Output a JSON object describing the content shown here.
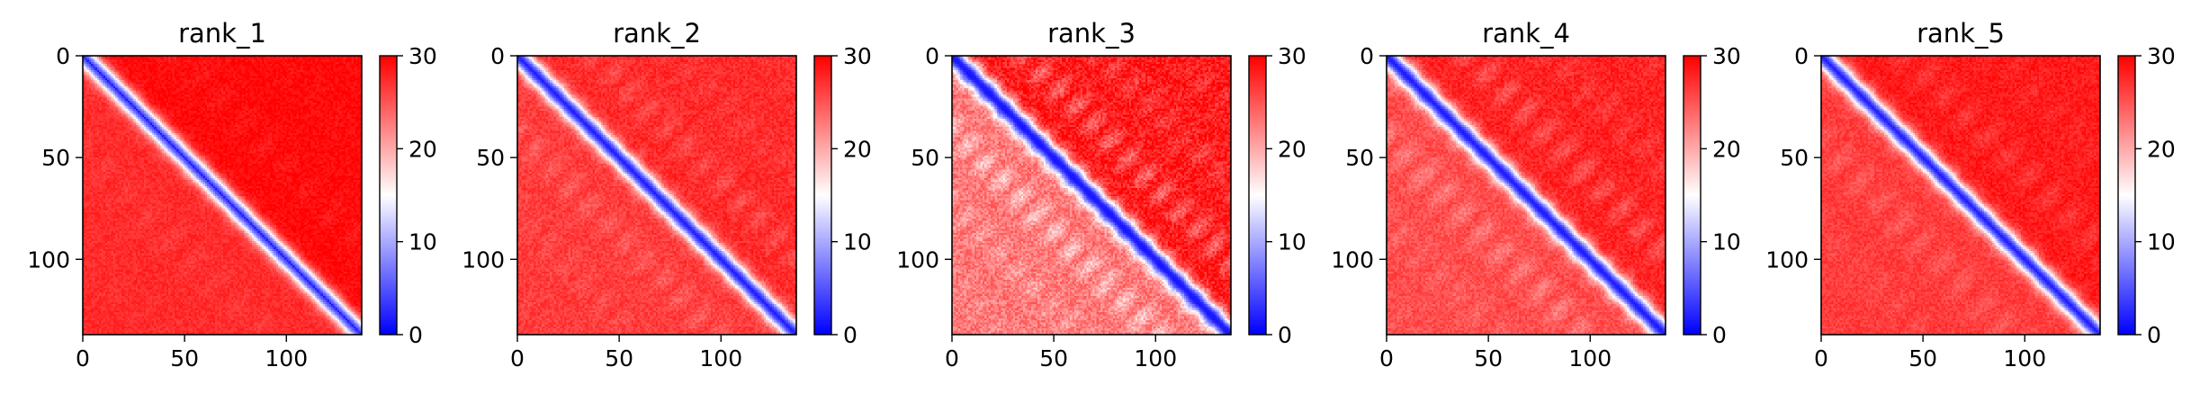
{
  "chart_data": [
    {
      "type": "heatmap",
      "title": "rank_1",
      "x_ticks": [
        0,
        50,
        100
      ],
      "y_ticks": [
        0,
        50,
        100
      ],
      "xlim": [
        0,
        137
      ],
      "ylim": [
        137,
        0
      ],
      "colorbar": {
        "ticks": [
          0,
          10,
          20,
          30
        ],
        "range": [
          0,
          30
        ],
        "colormap": "bwr"
      },
      "n": 137,
      "pattern": {
        "diag_width": 4.5,
        "diag_depth": 0.85,
        "base": 27.5,
        "upper_base": 29.5,
        "blob_amp": 2,
        "blob_period": 22,
        "noise": 1.2
      }
    },
    {
      "type": "heatmap",
      "title": "rank_2",
      "x_ticks": [
        0,
        50,
        100
      ],
      "y_ticks": [
        0,
        50,
        100
      ],
      "xlim": [
        0,
        137
      ],
      "ylim": [
        137,
        0
      ],
      "colorbar": {
        "ticks": [
          0,
          10,
          20,
          30
        ],
        "range": [
          0,
          30
        ],
        "colormap": "bwr"
      },
      "n": 137,
      "pattern": {
        "diag_width": 4.5,
        "diag_depth": 0.9,
        "base": 26.5,
        "upper_base": 27.5,
        "blob_amp": 4,
        "blob_period": 18,
        "noise": 1.5
      }
    },
    {
      "type": "heatmap",
      "title": "rank_3",
      "x_ticks": [
        0,
        50,
        100
      ],
      "y_ticks": [
        0,
        50,
        100
      ],
      "xlim": [
        0,
        137
      ],
      "ylim": [
        137,
        0
      ],
      "colorbar": {
        "ticks": [
          0,
          10,
          20,
          30
        ],
        "range": [
          0,
          30
        ],
        "colormap": "bwr"
      },
      "n": 137,
      "pattern": {
        "diag_width": 4.5,
        "diag_depth": 0.95,
        "base": 23,
        "upper_base": 28.5,
        "blob_amp": 9,
        "blob_period": 17,
        "noise": 2.5
      }
    },
    {
      "type": "heatmap",
      "title": "rank_4",
      "x_ticks": [
        0,
        50,
        100
      ],
      "y_ticks": [
        0,
        50,
        100
      ],
      "xlim": [
        0,
        137
      ],
      "ylim": [
        137,
        0
      ],
      "colorbar": {
        "ticks": [
          0,
          10,
          20,
          30
        ],
        "range": [
          0,
          30
        ],
        "colormap": "bwr"
      },
      "n": 137,
      "pattern": {
        "diag_width": 4.5,
        "diag_depth": 0.92,
        "base": 25.5,
        "upper_base": 28,
        "blob_amp": 6,
        "blob_period": 19,
        "noise": 1.6
      }
    },
    {
      "type": "heatmap",
      "title": "rank_5",
      "x_ticks": [
        0,
        50,
        100
      ],
      "y_ticks": [
        0,
        50,
        100
      ],
      "xlim": [
        0,
        137
      ],
      "ylim": [
        137,
        0
      ],
      "colorbar": {
        "ticks": [
          0,
          10,
          20,
          30
        ],
        "range": [
          0,
          30
        ],
        "colormap": "bwr"
      },
      "n": 137,
      "pattern": {
        "diag_width": 4.5,
        "diag_depth": 0.9,
        "base": 26.5,
        "upper_base": 28.5,
        "blob_amp": 4,
        "blob_period": 20,
        "noise": 1.4
      }
    }
  ]
}
